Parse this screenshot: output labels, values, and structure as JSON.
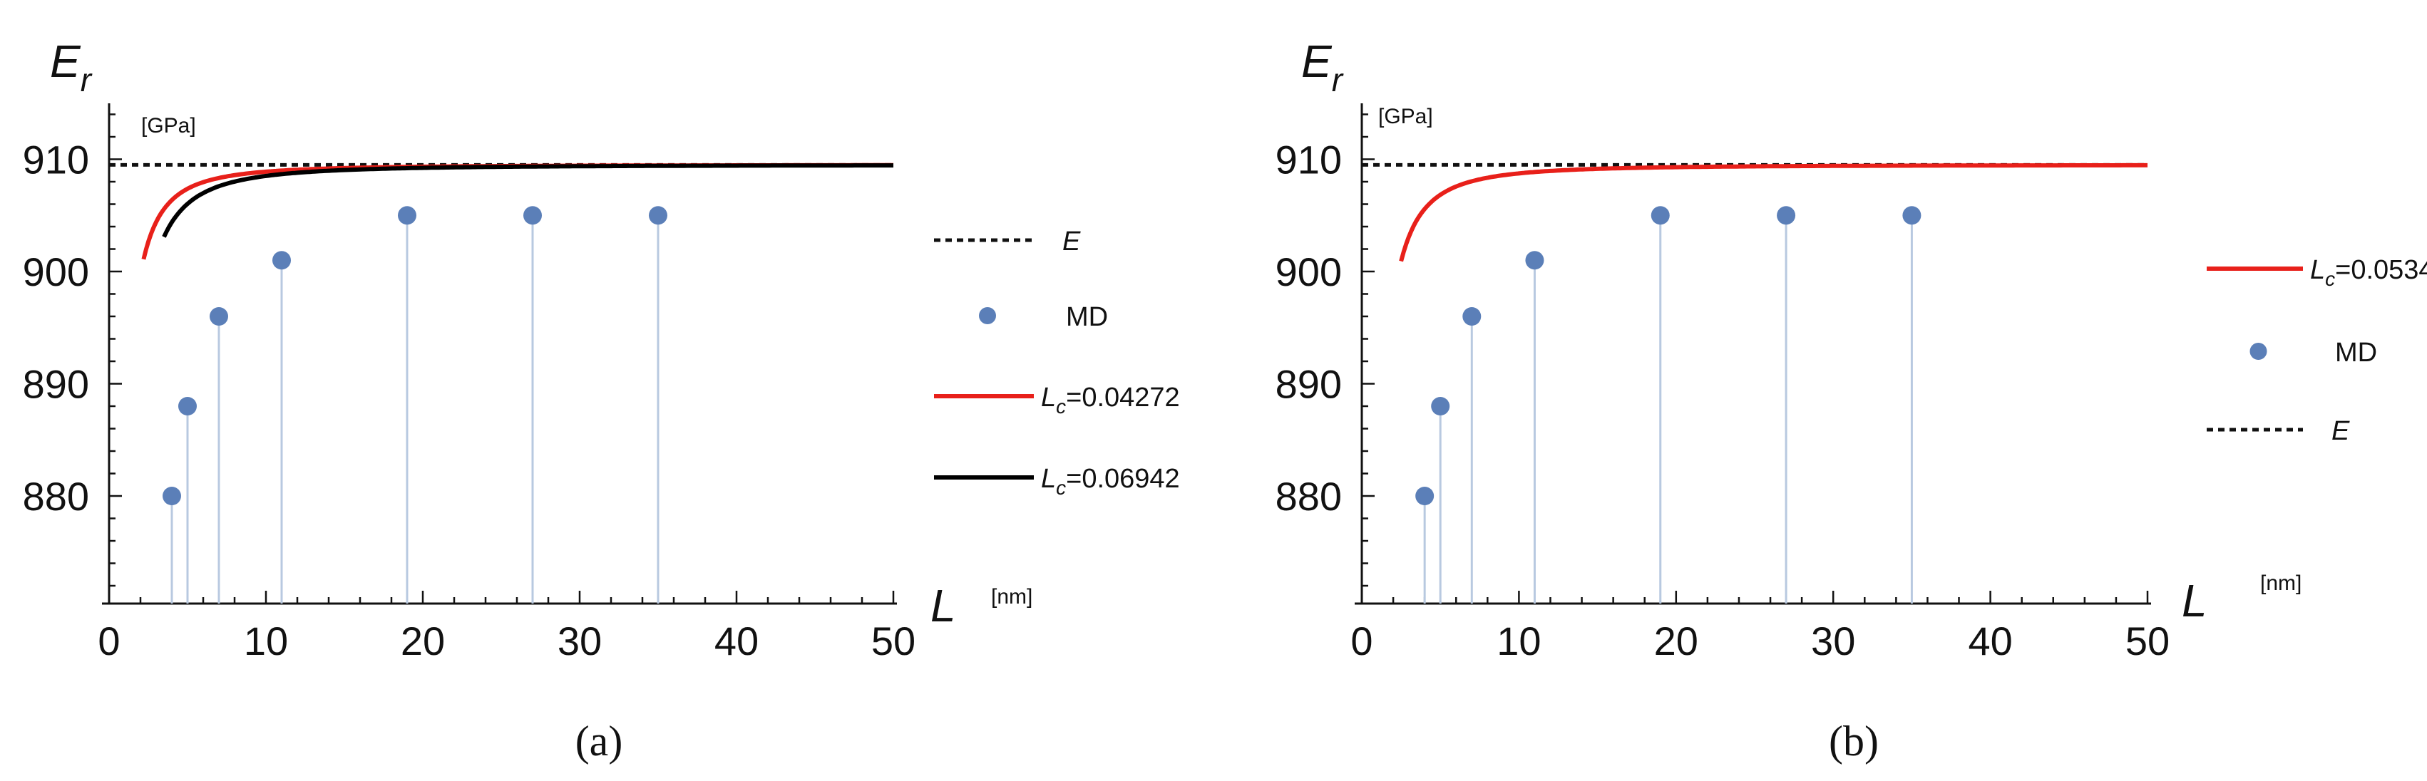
{
  "chart_data": [
    {
      "type": "line",
      "panel": "a",
      "caption": "(a)",
      "ylabel": "E",
      "ylabel_sub": "r",
      "yunit": "[GPa]",
      "xlabel": "L",
      "xunit": "[nm]",
      "xlim": [
        0,
        50
      ],
      "ylim": [
        870,
        915
      ],
      "xticks": [
        0,
        10,
        20,
        30,
        40,
        50
      ],
      "yticks": [
        880,
        890,
        900,
        910
      ],
      "E_value": 909.5,
      "E_label": "E",
      "md_label": "MD",
      "md_points": [
        {
          "x": 4,
          "y": 880
        },
        {
          "x": 5,
          "y": 888
        },
        {
          "x": 7,
          "y": 896
        },
        {
          "x": 11,
          "y": 901
        },
        {
          "x": 19,
          "y": 905
        },
        {
          "x": 27,
          "y": 905
        },
        {
          "x": 35,
          "y": 905
        }
      ],
      "series": [
        {
          "name": "Lc=0.04272",
          "label_sym": "L",
          "label_sub": "c",
          "label_val": "=0.04272",
          "color": "#e8201a",
          "k": 70.3,
          "x_start": 2.2
        },
        {
          "name": "Lc=0.06942",
          "label_sym": "L",
          "label_sub": "c",
          "label_val": "=0.06942",
          "color": "#000000",
          "k": 114.5,
          "x_start": 3.5
        }
      ],
      "legend_order": [
        "E",
        "MD",
        "series0",
        "series1"
      ]
    },
    {
      "type": "line",
      "panel": "b",
      "caption": "(b)",
      "ylabel": "E",
      "ylabel_sub": "r",
      "yunit": "[GPa]",
      "xlabel": "L",
      "xunit": "[nm]",
      "xlim": [
        0,
        50
      ],
      "ylim": [
        870,
        915
      ],
      "xticks": [
        0,
        10,
        20,
        30,
        40,
        50
      ],
      "yticks": [
        880,
        890,
        900,
        910
      ],
      "E_value": 909.5,
      "E_label": "E",
      "md_label": "MD",
      "md_points": [
        {
          "x": 4,
          "y": 880
        },
        {
          "x": 5,
          "y": 888
        },
        {
          "x": 7,
          "y": 896
        },
        {
          "x": 11,
          "y": 901
        },
        {
          "x": 19,
          "y": 905
        },
        {
          "x": 27,
          "y": 905
        },
        {
          "x": 35,
          "y": 905
        }
      ],
      "series": [
        {
          "name": "Lc=0.0534",
          "label_sym": "L",
          "label_sub": "c",
          "label_val": "=0.0534",
          "color": "#e8201a",
          "k": 88.0,
          "x_start": 2.5
        }
      ],
      "legend_order": [
        "series0",
        "MD",
        "E"
      ]
    }
  ]
}
